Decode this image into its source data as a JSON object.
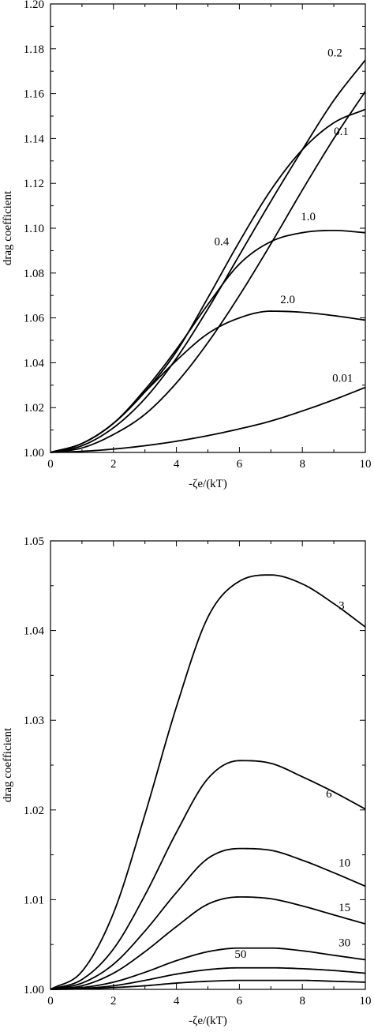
{
  "chart_data": [
    {
      "type": "line",
      "xlabel": "-ζe/(kT)",
      "ylabel": "drag coefficient",
      "xlim": [
        0,
        10
      ],
      "ylim": [
        1.0,
        1.2
      ],
      "x_ticks": [
        "0",
        "2",
        "4",
        "6",
        "8",
        "10"
      ],
      "y_ticks": [
        "1.00",
        "1.02",
        "1.04",
        "1.06",
        "1.08",
        "1.10",
        "1.12",
        "1.14",
        "1.16",
        "1.18",
        "1.20"
      ],
      "grid": false,
      "series": [
        {
          "name": "0.01",
          "x": [
            0,
            1,
            2,
            3,
            4,
            5,
            6,
            7,
            8,
            9,
            10
          ],
          "y": [
            1.0,
            1.0005,
            1.0015,
            1.003,
            1.005,
            1.0075,
            1.0105,
            1.014,
            1.0185,
            1.0235,
            1.029
          ]
        },
        {
          "name": "0.1",
          "x": [
            0,
            1,
            2,
            3,
            4,
            5,
            6,
            7,
            8,
            9,
            10
          ],
          "y": [
            1.0,
            1.002,
            1.008,
            1.017,
            1.031,
            1.049,
            1.07,
            1.093,
            1.117,
            1.14,
            1.161
          ]
        },
        {
          "name": "0.2",
          "x": [
            0,
            1,
            2,
            3,
            4,
            5,
            6,
            7,
            8,
            9,
            10
          ],
          "y": [
            1.0,
            1.003,
            1.011,
            1.024,
            1.042,
            1.064,
            1.088,
            1.112,
            1.135,
            1.157,
            1.175
          ]
        },
        {
          "name": "0.4",
          "x": [
            0,
            1,
            2,
            3,
            4,
            5,
            6,
            7,
            8,
            9,
            10
          ],
          "y": [
            1.0,
            1.004,
            1.013,
            1.027,
            1.045,
            1.069,
            1.094,
            1.117,
            1.135,
            1.147,
            1.153
          ]
        },
        {
          "name": "1.0",
          "x": [
            0,
            1,
            2,
            3,
            4,
            5,
            6,
            7,
            8,
            9,
            10
          ],
          "y": [
            1.0,
            1.004,
            1.013,
            1.028,
            1.046,
            1.066,
            1.084,
            1.094,
            1.098,
            1.099,
            1.098
          ]
        },
        {
          "name": "2.0",
          "x": [
            0,
            1,
            2,
            3,
            4,
            5,
            6,
            7,
            8,
            9,
            10
          ],
          "y": [
            1.0,
            1.004,
            1.013,
            1.027,
            1.041,
            1.053,
            1.06,
            1.063,
            1.0625,
            1.061,
            1.059
          ]
        }
      ]
    },
    {
      "type": "line",
      "xlabel": "-ζe/(kT)",
      "ylabel": "drag coefficient",
      "xlim": [
        0,
        10
      ],
      "ylim": [
        1.0,
        1.05
      ],
      "x_ticks": [
        "0",
        "2",
        "4",
        "6",
        "8",
        "10"
      ],
      "y_ticks": [
        "1.00",
        "1.01",
        "1.02",
        "1.03",
        "1.04",
        "1.05"
      ],
      "grid": false,
      "series": [
        {
          "name": "3",
          "x": [
            0,
            1,
            2,
            3,
            4,
            5,
            6,
            7,
            8,
            9,
            10
          ],
          "y": [
            1.0,
            1.002,
            1.0085,
            1.0195,
            1.0315,
            1.0415,
            1.0455,
            1.0462,
            1.0452,
            1.043,
            1.0404
          ]
        },
        {
          "name": "6",
          "x": [
            0,
            1,
            2,
            3,
            4,
            5,
            6,
            7,
            8,
            9,
            10
          ],
          "y": [
            1.0,
            1.0011,
            1.0045,
            1.0105,
            1.0175,
            1.0235,
            1.0255,
            1.0252,
            1.0237,
            1.022,
            1.0201
          ]
        },
        {
          "name": "10",
          "x": [
            0,
            1,
            2,
            3,
            4,
            5,
            6,
            7,
            8,
            9,
            10
          ],
          "y": [
            1.0,
            1.0007,
            1.0028,
            1.0065,
            1.0108,
            1.0146,
            1.0157,
            1.0155,
            1.0144,
            1.013,
            1.0115
          ]
        },
        {
          "name": "15",
          "x": [
            0,
            1,
            2,
            3,
            4,
            5,
            6,
            7,
            8,
            9,
            10
          ],
          "y": [
            1.0,
            1.0004,
            1.0018,
            1.0042,
            1.007,
            1.0095,
            1.0103,
            1.0101,
            1.0093,
            1.0083,
            1.0073
          ]
        },
        {
          "name": "30",
          "x": [
            0,
            1,
            2,
            3,
            4,
            5,
            6,
            7,
            8,
            9,
            10
          ],
          "y": [
            1.0,
            1.0002,
            1.0008,
            1.0019,
            1.0032,
            1.0042,
            1.0046,
            1.0046,
            1.0043,
            1.0038,
            1.0033
          ]
        },
        {
          "name": "50",
          "x": [
            0,
            1,
            2,
            3,
            4,
            5,
            6,
            7,
            8,
            9,
            10
          ],
          "y": [
            1.0,
            1.0001,
            1.0004,
            1.001,
            1.0017,
            1.0022,
            1.0024,
            1.0024,
            1.0023,
            1.0021,
            1.0018
          ]
        },
        {
          "name": "",
          "x": [
            0,
            1,
            2,
            3,
            4,
            5,
            6,
            7,
            8,
            9,
            10
          ],
          "y": [
            1.0,
            1.00005,
            1.0002,
            1.0004,
            1.0007,
            1.0009,
            1.001,
            1.001,
            1.001,
            1.0009,
            1.0008
          ]
        }
      ]
    }
  ]
}
